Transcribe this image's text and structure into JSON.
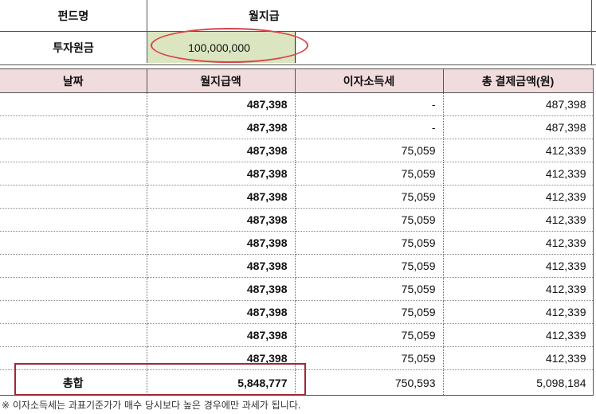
{
  "summary": {
    "fund_label": "펀드명",
    "fund_value": "월지급",
    "invest_label": "투자원금",
    "invest_value": "100,000,000"
  },
  "table": {
    "headers": [
      "날짜",
      "월지급액",
      "이자소득세",
      "총 결제금액(원)"
    ],
    "rows": [
      {
        "date": "",
        "monthly": "487,398",
        "tax": "-",
        "total": "487,398"
      },
      {
        "date": "",
        "monthly": "487,398",
        "tax": "-",
        "total": "487,398"
      },
      {
        "date": "",
        "monthly": "487,398",
        "tax": "75,059",
        "total": "412,339"
      },
      {
        "date": "",
        "monthly": "487,398",
        "tax": "75,059",
        "total": "412,339"
      },
      {
        "date": "",
        "monthly": "487,398",
        "tax": "75,059",
        "total": "412,339"
      },
      {
        "date": "",
        "monthly": "487,398",
        "tax": "75,059",
        "total": "412,339"
      },
      {
        "date": "",
        "monthly": "487,398",
        "tax": "75,059",
        "total": "412,339"
      },
      {
        "date": "",
        "monthly": "487,398",
        "tax": "75,059",
        "total": "412,339"
      },
      {
        "date": "",
        "monthly": "487,398",
        "tax": "75,059",
        "total": "412,339"
      },
      {
        "date": "",
        "monthly": "487,398",
        "tax": "75,059",
        "total": "412,339"
      },
      {
        "date": "",
        "monthly": "487,398",
        "tax": "75,059",
        "total": "412,339"
      },
      {
        "date": "",
        "monthly": "487,398",
        "tax": "75,059",
        "total": "412,339"
      }
    ],
    "totals": {
      "label": "총합",
      "monthly": "5,848,777",
      "tax": "750,593",
      "total": "5,098,184"
    }
  },
  "note": "※ 이자소득세는 과표기준가가 매수 당시보다 높은 경우에만 과세가 됩니다.",
  "colors": {
    "header_bg": "#f1dcdd",
    "invest_bg": "#dbe5c0",
    "highlight_oval": "#d9434a",
    "total_box": "#9b2b33"
  }
}
